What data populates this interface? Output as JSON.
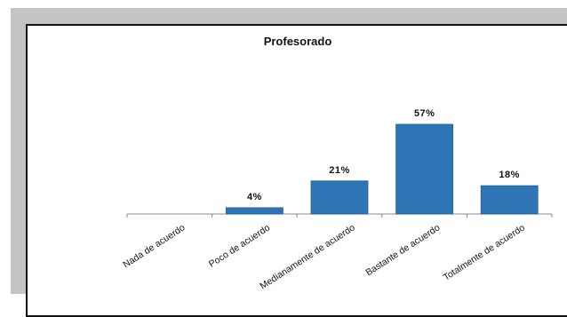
{
  "chart_data": {
    "type": "bar",
    "title": "Profesorado",
    "categories": [
      "Nada de acuerdo",
      "Poco de acuerdo",
      "Medianamente de acuerdo",
      "Bastante de acuerdo",
      "Totalmente de acuerdo"
    ],
    "values": [
      0,
      4,
      21,
      57,
      18
    ],
    "data_labels": [
      "",
      "4%",
      "21%",
      "57%",
      "18%"
    ],
    "ylim": [
      0,
      60
    ],
    "xlabel": "",
    "ylabel": "",
    "grid": false,
    "legend": "none",
    "bar_color": "#2e75b6"
  }
}
